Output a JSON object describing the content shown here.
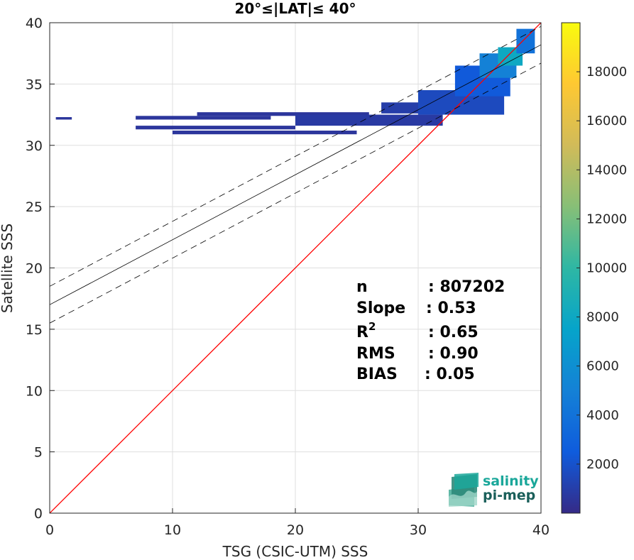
{
  "chart_data": {
    "type": "heatmap",
    "title": "20°≤|LAT|≤ 40°",
    "xlabel": "TSG (CSIC-UTM) SSS",
    "ylabel": "Satellite SSS",
    "xlim": [
      0,
      40
    ],
    "ylim": [
      0,
      40
    ],
    "xticks": [
      0,
      10,
      20,
      30,
      40
    ],
    "yticks": [
      0,
      5,
      10,
      15,
      20,
      25,
      30,
      35,
      40
    ],
    "grid": true,
    "colorbar": {
      "range": [
        0,
        20000
      ],
      "ticks": [
        2000,
        4000,
        6000,
        8000,
        10000,
        12000,
        14000,
        16000,
        18000
      ],
      "colormap": "parula"
    },
    "lines": [
      {
        "name": "1:1",
        "color": "#ff0000",
        "style": "solid",
        "slope": 1.0,
        "intercept": 0
      },
      {
        "name": "fit",
        "color": "#000000",
        "style": "solid",
        "slope": 0.53,
        "intercept": 17.0
      },
      {
        "name": "fit+",
        "color": "#000000",
        "style": "dashed",
        "slope": 0.53,
        "intercept": 18.5
      },
      {
        "name": "fit-",
        "color": "#000000",
        "style": "dashed",
        "slope": 0.53,
        "intercept": 15.5
      }
    ],
    "density_regions": [
      {
        "x": [
          0.5,
          1.8
        ],
        "y": [
          32.1,
          32.3
        ],
        "level": 0.03
      },
      {
        "x": [
          7.0,
          18.0
        ],
        "y": [
          32.1,
          32.4
        ],
        "level": 0.03
      },
      {
        "x": [
          12.0,
          26.0
        ],
        "y": [
          32.4,
          32.7
        ],
        "level": 0.03
      },
      {
        "x": [
          7.0,
          20.0
        ],
        "y": [
          31.3,
          31.6
        ],
        "level": 0.03
      },
      {
        "x": [
          10.0,
          25.0
        ],
        "y": [
          30.9,
          31.2
        ],
        "level": 0.03
      },
      {
        "x": [
          20.0,
          32.0
        ],
        "y": [
          31.6,
          32.5
        ],
        "level": 0.04
      },
      {
        "x": [
          27.0,
          33.0
        ],
        "y": [
          32.6,
          33.5
        ],
        "level": 0.05
      },
      {
        "x": [
          30.0,
          37.0
        ],
        "y": [
          32.5,
          34.5
        ],
        "level": 0.08
      },
      {
        "x": [
          33.0,
          37.5
        ],
        "y": [
          34.0,
          36.5
        ],
        "level": 0.12
      },
      {
        "x": [
          35.0,
          38.0
        ],
        "y": [
          35.5,
          37.5
        ],
        "level": 0.25
      },
      {
        "x": [
          36.5,
          38.5
        ],
        "y": [
          36.5,
          38.0
        ],
        "level": 0.4
      },
      {
        "x": [
          38.0,
          39.5
        ],
        "y": [
          37.5,
          39.5
        ],
        "level": 0.2
      }
    ],
    "stats": [
      {
        "label": "n",
        "value": ": 807202"
      },
      {
        "label": "Slope",
        "value": ": 0.53"
      },
      {
        "label": "R",
        "sup": "2",
        "value": ": 0.65"
      },
      {
        "label": "RMS",
        "value": ": 0.90"
      },
      {
        "label": "BIAS",
        "value": ": 0.05"
      }
    ]
  },
  "logo": {
    "line1": "salinity",
    "line2": "pi-mep"
  },
  "colors": {
    "one_to_one": "#ff0000",
    "fit": "#000000",
    "logo_text": "#1aa79a",
    "logo_text2": "#1a5f5a"
  }
}
